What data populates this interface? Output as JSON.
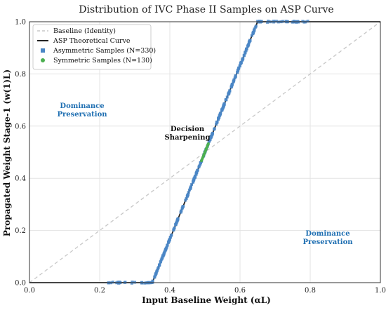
{
  "chart_data": {
    "type": "scatter",
    "title": "Distribution of IVC Phase II Samples on ASP Curve",
    "xlabel": "Input Baseline Weight (αL)",
    "ylabel": "Propagated Weight Stage-1 (w(1)L)",
    "xlim": [
      0.0,
      1.0
    ],
    "ylim": [
      0.0,
      1.0
    ],
    "x_ticks": [
      "0.0",
      "0.2",
      "0.4",
      "0.6",
      "0.8",
      "1.0"
    ],
    "y_ticks": [
      "0.0",
      "0.2",
      "0.4",
      "0.6",
      "0.8",
      "1.0"
    ],
    "grid": true,
    "legend_position": "top-left",
    "series": [
      {
        "name": "Baseline (Identity)",
        "kind": "line",
        "style": "dashed",
        "color": "#c8c8c8",
        "x": [
          0.0,
          1.0
        ],
        "y": [
          0.0,
          1.0
        ]
      },
      {
        "name": "ASP Theoretical Curve",
        "kind": "line",
        "style": "solid",
        "color": "#222222",
        "x": [
          0.0,
          0.35,
          0.65,
          1.0
        ],
        "y": [
          0.0,
          0.0,
          1.0,
          1.0
        ]
      },
      {
        "name": "Asymmetric Samples (N=330)",
        "kind": "scatter",
        "marker": "square",
        "color": "#4a86c5",
        "count": 330,
        "x_range": [
          0.22,
          0.8
        ]
      },
      {
        "name": "Symmetric Samples (N=130)",
        "kind": "scatter",
        "marker": "circle",
        "color": "#4caf50",
        "count": 130,
        "x_range": [
          0.49,
          0.51
        ]
      }
    ],
    "annotations": [
      {
        "text": [
          "Dominance",
          "Preservation"
        ],
        "x": 0.15,
        "y": 0.67,
        "color": "#1f6fb2"
      },
      {
        "text": [
          "Decision",
          "Sharpening"
        ],
        "x": 0.45,
        "y": 0.58,
        "color": "#111111"
      },
      {
        "text": [
          "Dominance",
          "Preservation"
        ],
        "x": 0.85,
        "y": 0.18,
        "color": "#1f6fb2"
      }
    ]
  }
}
